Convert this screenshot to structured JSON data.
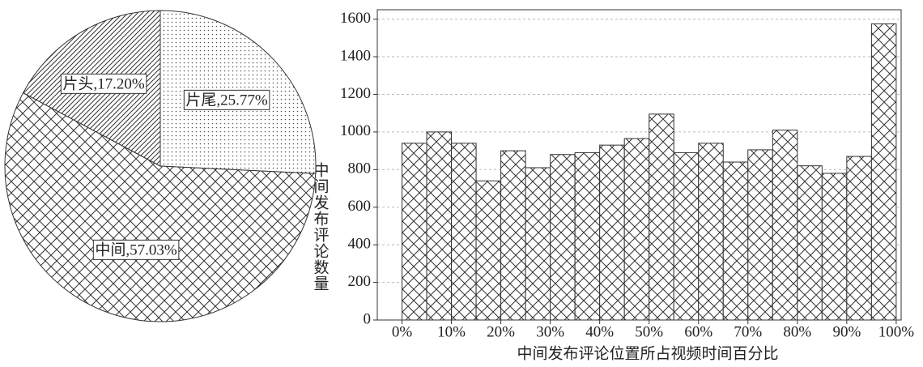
{
  "chart_data": [
    {
      "type": "pie",
      "categories": [
        "片尾",
        "中间",
        "片头"
      ],
      "values": [
        25.77,
        57.03,
        17.2
      ],
      "value_labels": [
        "片尾,25.77%",
        "中间,57.03%",
        "片头,17.20%"
      ],
      "patterns": [
        "dots",
        "crosshatch",
        "diagonal"
      ]
    },
    {
      "type": "histogram",
      "bins": [
        0,
        5,
        10,
        15,
        20,
        25,
        30,
        35,
        40,
        45,
        50,
        55,
        60,
        65,
        70,
        75,
        80,
        85,
        90,
        95,
        100
      ],
      "values": [
        940,
        1000,
        940,
        740,
        900,
        810,
        880,
        890,
        930,
        965,
        1095,
        890,
        940,
        840,
        905,
        1010,
        820,
        780,
        870,
        1575
      ],
      "pattern": "crosshatch",
      "xlabel": "中间发布评论位置所占视频时间百分比",
      "ylabel": "中间发布评论数量",
      "xlim": [
        -5,
        101
      ],
      "ylim": [
        0,
        1650
      ],
      "xticks": [
        {
          "value": 0,
          "label": "0%"
        },
        {
          "value": 10,
          "label": "10%"
        },
        {
          "value": 20,
          "label": "20%"
        },
        {
          "value": 30,
          "label": "30%"
        },
        {
          "value": 40,
          "label": "40%"
        },
        {
          "value": 50,
          "label": "50%"
        },
        {
          "value": 60,
          "label": "60%"
        },
        {
          "value": 70,
          "label": "70%"
        },
        {
          "value": 80,
          "label": "80%"
        },
        {
          "value": 90,
          "label": "90%"
        },
        {
          "value": 100,
          "label": "100%"
        }
      ],
      "yticks": [
        0,
        200,
        400,
        600,
        800,
        1000,
        1200,
        1400,
        1600
      ],
      "grid": true
    }
  ]
}
